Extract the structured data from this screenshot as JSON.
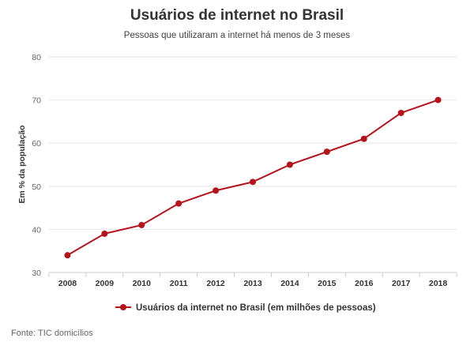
{
  "chart_data": {
    "type": "line",
    "title": "Usuários de internet no Brasil",
    "subtitle": "Pessoas que utilizaram a internet há menos de 3 meses",
    "ylabel": "Em % da população",
    "xlabel": "",
    "categories": [
      "2008",
      "2009",
      "2010",
      "2011",
      "2012",
      "2013",
      "2014",
      "2015",
      "2016",
      "2017",
      "2018"
    ],
    "yticks": [
      30,
      40,
      50,
      60,
      70,
      80
    ],
    "ylim": [
      30,
      80
    ],
    "grid": true,
    "legend_position": "bottom-center",
    "series": [
      {
        "name": "Usuários da internet no Brasil (em milhões de pessoas)",
        "color": "#b5121b",
        "values": [
          34,
          39,
          41,
          46,
          49,
          51,
          55,
          58,
          61,
          67,
          70
        ]
      }
    ],
    "source": "Fonte: TIC domicílios"
  },
  "colors": {
    "series": "#b5121b",
    "grid": "#e6e6e6",
    "axis": "#cccccc"
  }
}
